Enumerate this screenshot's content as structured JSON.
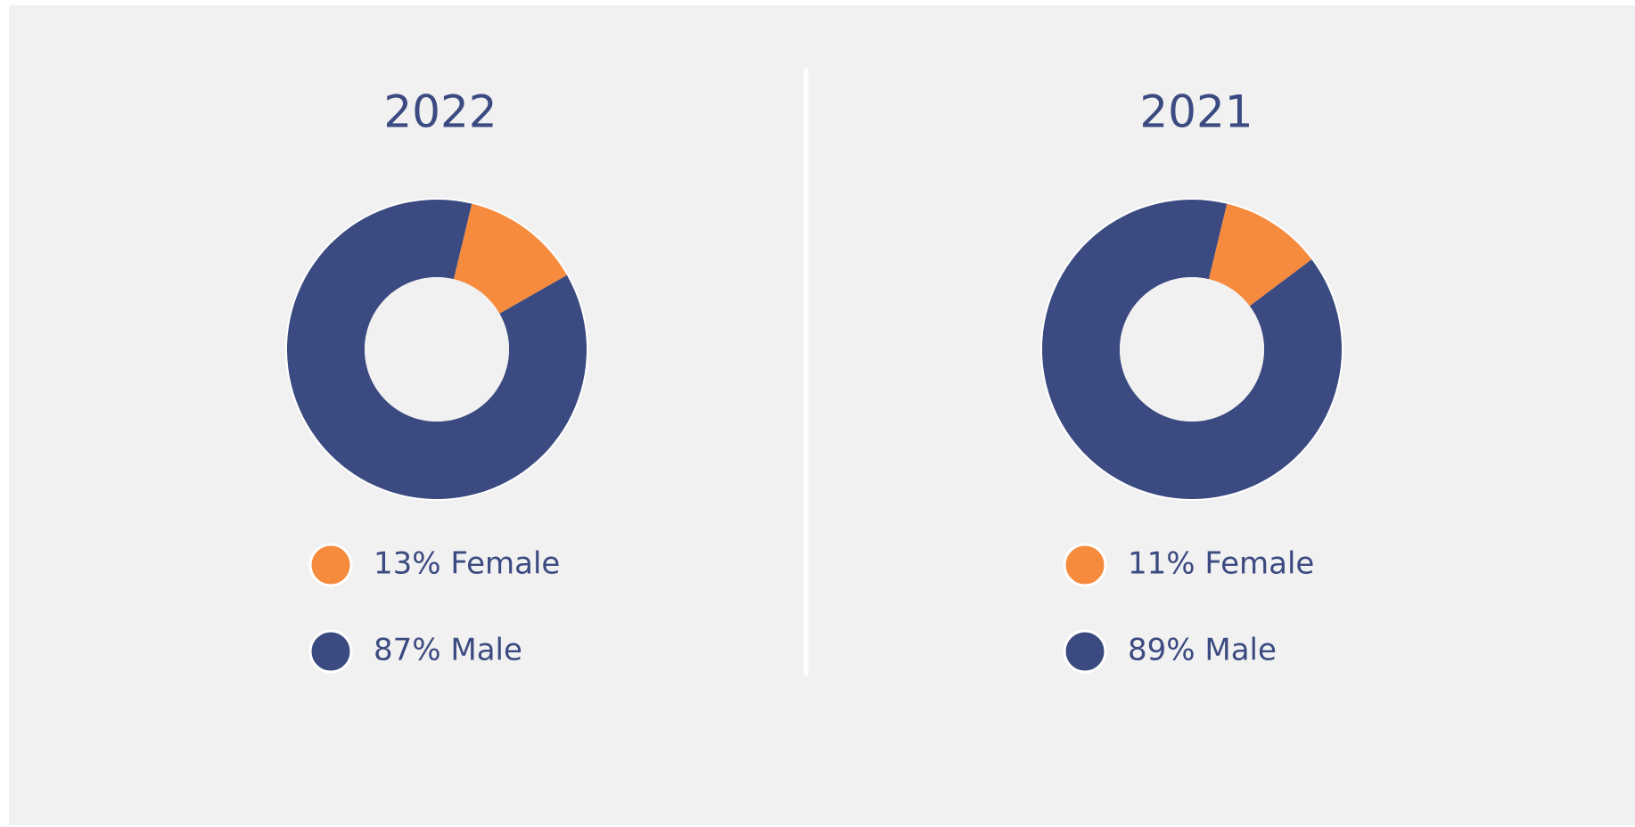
{
  "chart_data": [
    {
      "type": "pie",
      "title": "2022",
      "labels": [
        "13% Female",
        "87% Male"
      ],
      "values": [
        13,
        87
      ],
      "colors": [
        "#f68b3e",
        "#3b4a80"
      ]
    },
    {
      "type": "pie",
      "title": "2021",
      "labels": [
        "11% Female",
        "89% Male"
      ],
      "values": [
        11,
        89
      ],
      "colors": [
        "#f68b3e",
        "#3b4a80"
      ]
    }
  ]
}
